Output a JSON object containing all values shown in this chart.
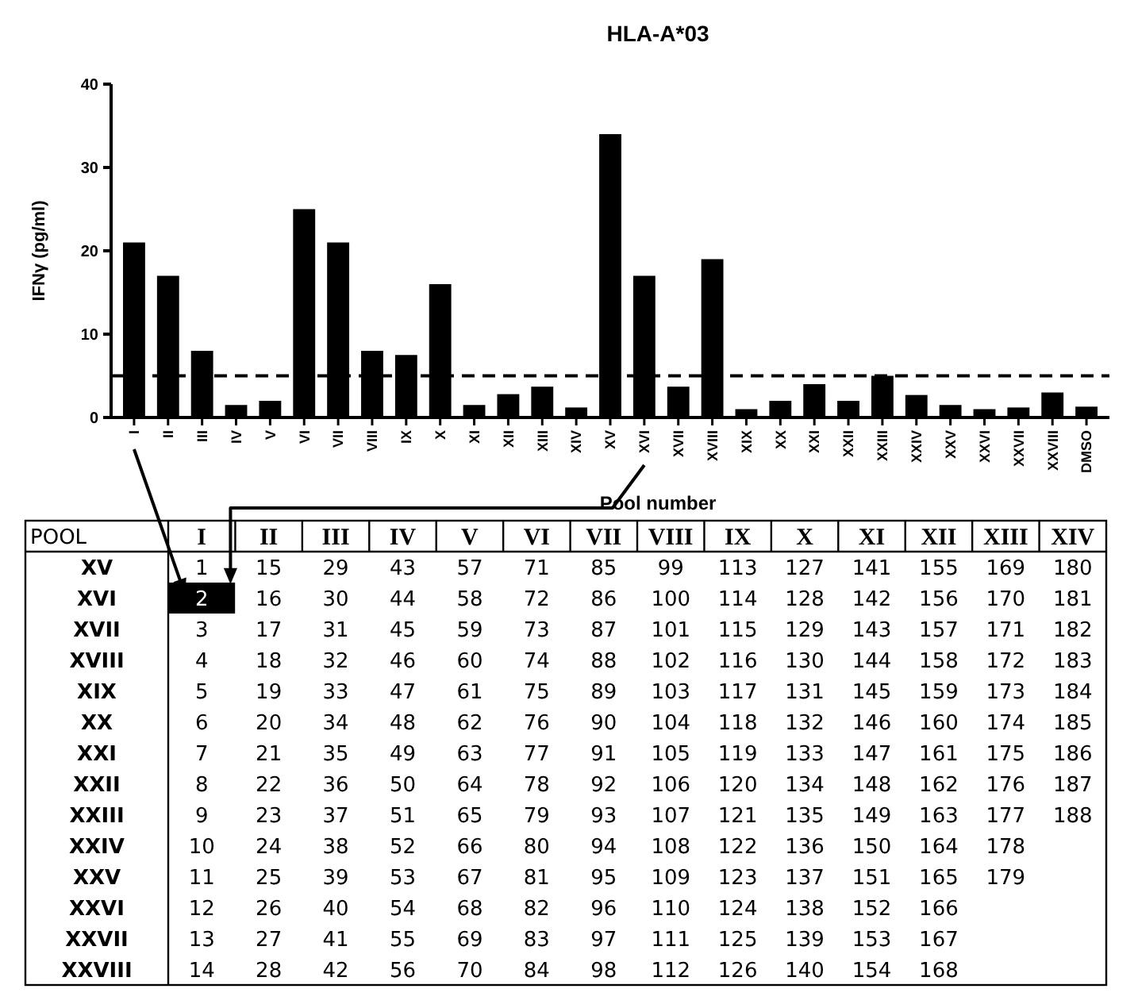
{
  "chart_data": [
    {
      "type": "bar",
      "title": "HLA-A*03",
      "xlabel": "Pool number",
      "ylabel": "IFNγ (pg/ml)",
      "categories": [
        "I",
        "II",
        "III",
        "IV",
        "V",
        "VI",
        "VII",
        "VIII",
        "IX",
        "X",
        "XI",
        "XII",
        "XIII",
        "XIV",
        "XV",
        "XVI",
        "XVII",
        "XVIII",
        "XIX",
        "XX",
        "XXI",
        "XXII",
        "XXIII",
        "XXIV",
        "XXV",
        "XXVI",
        "XXVII",
        "XXVIII",
        "DMSO"
      ],
      "values": [
        21,
        17,
        8,
        1.5,
        2,
        25,
        21,
        8,
        7.5,
        16,
        1.5,
        2.8,
        3.7,
        1.2,
        34,
        17,
        3.7,
        19,
        1,
        2,
        4,
        2,
        5,
        2.7,
        1.5,
        1,
        1.2,
        3,
        1.3
      ],
      "color": "#000000",
      "ylim": [
        0,
        40
      ],
      "yticks": [
        0,
        10,
        20,
        30,
        40
      ],
      "ref_lines": [
        {
          "axis": "y",
          "value": 5,
          "label": null,
          "color": "#000000",
          "line_style": "dashed"
        }
      ]
    },
    {
      "type": "heatmap",
      "ylabel": "POOL",
      "categories": [
        "I",
        "II",
        "III",
        "IV",
        "V",
        "VI",
        "VII",
        "VIII",
        "IX",
        "X",
        "XI",
        "XII",
        "XIII",
        "XIV"
      ],
      "y_categories": [
        "XV",
        "XVI",
        "XVII",
        "XVIII",
        "XIX",
        "XX",
        "XXI",
        "XXII",
        "XXIII",
        "XXIV",
        "XXV",
        "XXVI",
        "XXVII",
        "XXVIII"
      ],
      "cells": [
        [
          1,
          15,
          29,
          43,
          57,
          71,
          85,
          99,
          113,
          127,
          141,
          155,
          169,
          180
        ],
        [
          2,
          16,
          30,
          44,
          58,
          72,
          86,
          100,
          114,
          128,
          142,
          156,
          170,
          181
        ],
        [
          3,
          17,
          31,
          45,
          59,
          73,
          87,
          101,
          115,
          129,
          143,
          157,
          171,
          182
        ],
        [
          4,
          18,
          32,
          46,
          60,
          74,
          88,
          102,
          116,
          130,
          144,
          158,
          172,
          183
        ],
        [
          5,
          19,
          33,
          47,
          61,
          75,
          89,
          103,
          117,
          131,
          145,
          159,
          173,
          184
        ],
        [
          6,
          20,
          34,
          48,
          62,
          76,
          90,
          104,
          118,
          132,
          146,
          160,
          174,
          185
        ],
        [
          7,
          21,
          35,
          49,
          63,
          77,
          91,
          105,
          119,
          133,
          147,
          161,
          175,
          186
        ],
        [
          8,
          22,
          36,
          50,
          64,
          78,
          92,
          106,
          120,
          134,
          148,
          162,
          176,
          187
        ],
        [
          9,
          23,
          37,
          51,
          65,
          79,
          93,
          107,
          121,
          135,
          149,
          163,
          177,
          188
        ],
        [
          10,
          24,
          38,
          52,
          66,
          80,
          94,
          108,
          122,
          136,
          150,
          164,
          178,
          null
        ],
        [
          11,
          25,
          39,
          53,
          67,
          81,
          95,
          109,
          123,
          137,
          151,
          165,
          179,
          null
        ],
        [
          12,
          26,
          40,
          54,
          68,
          82,
          96,
          110,
          124,
          138,
          152,
          166,
          null,
          null
        ],
        [
          13,
          27,
          41,
          55,
          69,
          83,
          97,
          111,
          125,
          139,
          153,
          167,
          null,
          null
        ],
        [
          14,
          28,
          42,
          56,
          70,
          84,
          98,
          112,
          126,
          140,
          154,
          168,
          null,
          null
        ]
      ],
      "data_labels": true
    }
  ]
}
